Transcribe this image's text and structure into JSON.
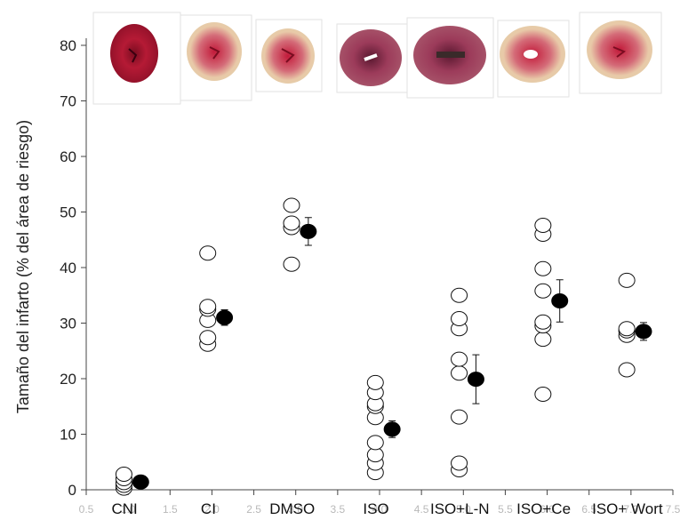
{
  "chart_data": {
    "type": "scatter",
    "title": "",
    "xlabel": "",
    "ylabel": "Tamaño del infarto (% del área de riesgo)",
    "ylim": [
      0,
      80
    ],
    "yticks": [
      "0",
      "10",
      "20",
      "30",
      "40",
      "50",
      "60",
      "70",
      "80"
    ],
    "xlim": [
      0.5,
      7.5
    ],
    "xticks": [
      "0.5",
      "1.0",
      "1.5",
      "2.0",
      "2.5",
      "3.0",
      "3.5",
      "4.0",
      "4.5",
      "5.0",
      "5.5",
      "6.0",
      "6.5",
      "7.0",
      "7.5"
    ],
    "categories": [
      "CNI",
      "CI",
      "DMSO",
      "ISO",
      "ISO+L-N",
      "ISO+Ce",
      "ISO+ Wort"
    ],
    "image_strip": "heart-section-images",
    "series": [
      {
        "marker": "open-circle",
        "points": [
          {
            "x": 0.95,
            "y": 0.3
          },
          {
            "x": 0.95,
            "y": 0.8
          },
          {
            "x": 0.95,
            "y": 1.3
          },
          {
            "x": 0.95,
            "y": 2.0
          },
          {
            "x": 0.95,
            "y": 2.8
          },
          {
            "x": 1.95,
            "y": 26.2
          },
          {
            "x": 1.95,
            "y": 27.4
          },
          {
            "x": 1.95,
            "y": 30.5
          },
          {
            "x": 1.95,
            "y": 32.5
          },
          {
            "x": 1.95,
            "y": 33.0
          },
          {
            "x": 1.95,
            "y": 42.6
          },
          {
            "x": 2.95,
            "y": 40.6
          },
          {
            "x": 2.95,
            "y": 47.2
          },
          {
            "x": 2.95,
            "y": 48.0
          },
          {
            "x": 2.95,
            "y": 51.2
          },
          {
            "x": 3.95,
            "y": 3.1
          },
          {
            "x": 3.95,
            "y": 4.8
          },
          {
            "x": 3.95,
            "y": 6.3
          },
          {
            "x": 3.95,
            "y": 8.5
          },
          {
            "x": 3.95,
            "y": 13.0
          },
          {
            "x": 3.95,
            "y": 15.0
          },
          {
            "x": 3.95,
            "y": 15.5
          },
          {
            "x": 3.95,
            "y": 17.5
          },
          {
            "x": 3.95,
            "y": 19.3
          },
          {
            "x": 4.95,
            "y": 3.6
          },
          {
            "x": 4.95,
            "y": 4.8
          },
          {
            "x": 4.95,
            "y": 13.1
          },
          {
            "x": 4.95,
            "y": 21.0
          },
          {
            "x": 4.95,
            "y": 23.5
          },
          {
            "x": 4.95,
            "y": 29.0
          },
          {
            "x": 4.95,
            "y": 30.8
          },
          {
            "x": 4.95,
            "y": 35.0
          },
          {
            "x": 5.95,
            "y": 17.2
          },
          {
            "x": 5.95,
            "y": 27.1
          },
          {
            "x": 5.95,
            "y": 29.5
          },
          {
            "x": 5.95,
            "y": 30.2
          },
          {
            "x": 5.95,
            "y": 35.8
          },
          {
            "x": 5.95,
            "y": 39.8
          },
          {
            "x": 5.95,
            "y": 46.0
          },
          {
            "x": 5.95,
            "y": 47.6
          },
          {
            "x": 6.95,
            "y": 21.6
          },
          {
            "x": 6.95,
            "y": 27.8
          },
          {
            "x": 6.95,
            "y": 28.6
          },
          {
            "x": 6.95,
            "y": 29.0
          },
          {
            "x": 6.95,
            "y": 37.7
          }
        ]
      },
      {
        "marker": "filled-circle-with-error-bar",
        "points": [
          {
            "x": 1.15,
            "y": 1.4,
            "err": 0.6
          },
          {
            "x": 2.15,
            "y": 31.0,
            "err": 1.4
          },
          {
            "x": 3.15,
            "y": 46.5,
            "err": 2.5
          },
          {
            "x": 4.15,
            "y": 10.9,
            "err": 1.5
          },
          {
            "x": 5.15,
            "y": 19.9,
            "err": 4.4
          },
          {
            "x": 6.15,
            "y": 34.0,
            "err": 3.8
          },
          {
            "x": 7.15,
            "y": 28.5,
            "err": 1.6
          }
        ]
      }
    ]
  }
}
